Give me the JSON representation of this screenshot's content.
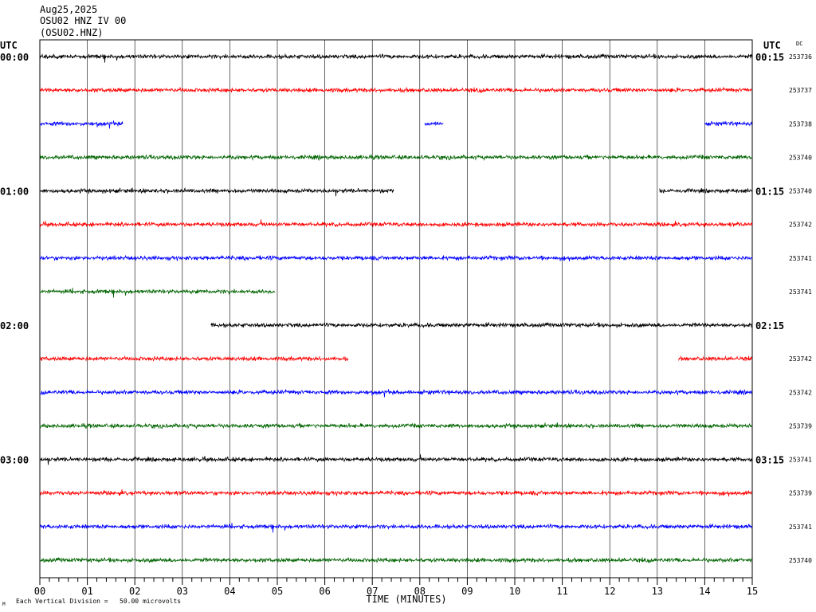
{
  "header": {
    "date": "Aug25,2025",
    "station": "OSU02 HNZ IV 00",
    "channel": "(OSU02.HNZ)"
  },
  "labels": {
    "left_utc": "UTC",
    "right_utc": "UTC",
    "dc": "DC",
    "xlabel": "TIME (MINUTES)",
    "footnote_prefix": "M",
    "scale_note": "Each Vertical Division =   50.00 microvolts"
  },
  "colors": {
    "black": "#000000",
    "red": "#ff0000",
    "blue": "#0000ff",
    "green": "#006400",
    "grid": "#000000"
  },
  "chart_data": {
    "type": "line",
    "title": "OSU02 HNZ IV 00",
    "xlabel": "TIME (MINUTES)",
    "xlim": [
      0,
      15
    ],
    "x_ticks": [
      "00",
      "01",
      "02",
      "03",
      "04",
      "05",
      "06",
      "07",
      "08",
      "09",
      "10",
      "11",
      "12",
      "13",
      "14",
      "15"
    ],
    "left_time_labels": [
      {
        "row": 0,
        "text": "00:00"
      },
      {
        "row": 4,
        "text": "01:00"
      },
      {
        "row": 8,
        "text": "02:00"
      },
      {
        "row": 12,
        "text": "03:00"
      }
    ],
    "right_time_labels": [
      {
        "row": 0,
        "text": "00:15"
      },
      {
        "row": 4,
        "text": "01:15"
      },
      {
        "row": 8,
        "text": "02:15"
      },
      {
        "row": 12,
        "text": "03:15"
      }
    ],
    "series": [
      {
        "color": "black",
        "dc": "253736",
        "segments": [
          [
            0,
            15
          ]
        ]
      },
      {
        "color": "red",
        "dc": "253737",
        "segments": [
          [
            0,
            15
          ]
        ]
      },
      {
        "color": "blue",
        "dc": "253738",
        "segments": [
          [
            0,
            1.75
          ],
          [
            8.1,
            8.5
          ],
          [
            14,
            15
          ]
        ]
      },
      {
        "color": "green",
        "dc": "253740",
        "segments": [
          [
            0,
            15
          ]
        ]
      },
      {
        "color": "black",
        "dc": "253740",
        "segments": [
          [
            0,
            7.45
          ],
          [
            13.05,
            15
          ]
        ]
      },
      {
        "color": "red",
        "dc": "253742",
        "segments": [
          [
            0,
            15
          ]
        ]
      },
      {
        "color": "blue",
        "dc": "253741",
        "segments": [
          [
            0,
            15
          ]
        ]
      },
      {
        "color": "green",
        "dc": "253741",
        "segments": [
          [
            0,
            4.95
          ]
        ]
      },
      {
        "color": "black",
        "dc": "",
        "segments": [
          [
            3.6,
            15
          ]
        ]
      },
      {
        "color": "red",
        "dc": "253742",
        "segments": [
          [
            0,
            6.5
          ],
          [
            13.45,
            15
          ]
        ]
      },
      {
        "color": "blue",
        "dc": "253742",
        "segments": [
          [
            0,
            15
          ]
        ]
      },
      {
        "color": "green",
        "dc": "253739",
        "segments": [
          [
            0,
            15
          ]
        ]
      },
      {
        "color": "black",
        "dc": "253741",
        "segments": [
          [
            0,
            15
          ]
        ]
      },
      {
        "color": "red",
        "dc": "253739",
        "segments": [
          [
            0,
            15
          ]
        ]
      },
      {
        "color": "blue",
        "dc": "253741",
        "segments": [
          [
            0,
            15
          ]
        ]
      },
      {
        "color": "green",
        "dc": "253740",
        "segments": [
          [
            0,
            15
          ]
        ]
      }
    ]
  }
}
